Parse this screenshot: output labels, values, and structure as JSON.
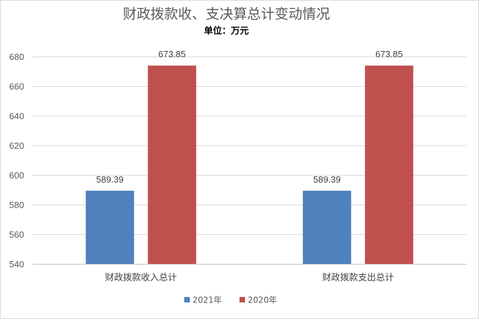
{
  "chart_data": {
    "type": "bar",
    "title": "财政拨款收、支决算总计变动情况",
    "subtitle": "单位：万元",
    "categories": [
      "财政拨款收入总计",
      "财政拨款支出总计"
    ],
    "series": [
      {
        "name": "2021年",
        "values": [
          589.39,
          589.39
        ],
        "labels": [
          "589.39",
          "589.39"
        ],
        "color": "#4f81bd"
      },
      {
        "name": "2020年",
        "values": [
          673.85,
          673.85
        ],
        "labels": [
          "673.85",
          "673.85"
        ],
        "color": "#c0504d"
      }
    ],
    "ylim": [
      540,
      680
    ],
    "yticks": [
      540,
      560,
      580,
      600,
      620,
      640,
      660,
      680
    ],
    "grid": true,
    "legend_position": "bottom"
  }
}
